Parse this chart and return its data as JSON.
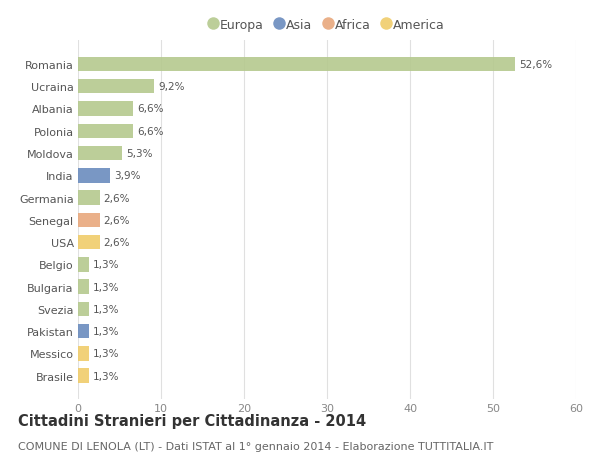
{
  "countries": [
    "Romania",
    "Ucraina",
    "Albania",
    "Polonia",
    "Moldova",
    "India",
    "Germania",
    "Senegal",
    "USA",
    "Belgio",
    "Bulgaria",
    "Svezia",
    "Pakistan",
    "Messico",
    "Brasile"
  ],
  "values": [
    52.6,
    9.2,
    6.6,
    6.6,
    5.3,
    3.9,
    2.6,
    2.6,
    2.6,
    1.3,
    1.3,
    1.3,
    1.3,
    1.3,
    1.3
  ],
  "labels": [
    "52,6%",
    "9,2%",
    "6,6%",
    "6,6%",
    "5,3%",
    "3,9%",
    "2,6%",
    "2,6%",
    "2,6%",
    "1,3%",
    "1,3%",
    "1,3%",
    "1,3%",
    "1,3%",
    "1,3%"
  ],
  "continents": [
    "Europa",
    "Europa",
    "Europa",
    "Europa",
    "Europa",
    "Asia",
    "Europa",
    "Africa",
    "America",
    "Europa",
    "Europa",
    "Europa",
    "Asia",
    "America",
    "America"
  ],
  "continent_colors": {
    "Europa": "#b5c98e",
    "Asia": "#6b8cbe",
    "Africa": "#e8a87c",
    "America": "#f0cc6a"
  },
  "legend_order": [
    "Europa",
    "Asia",
    "Africa",
    "America"
  ],
  "title": "Cittadini Stranieri per Cittadinanza - 2014",
  "subtitle": "COMUNE DI LENOLA (LT) - Dati ISTAT al 1° gennaio 2014 - Elaborazione TUTTITALIA.IT",
  "xlim": [
    0,
    60
  ],
  "xticks": [
    0,
    10,
    20,
    30,
    40,
    50,
    60
  ],
  "bg_color": "#ffffff",
  "grid_color": "#e0e0e0",
  "bar_height": 0.65,
  "title_fontsize": 10.5,
  "subtitle_fontsize": 8,
  "label_fontsize": 7.5,
  "tick_fontsize": 8,
  "legend_fontsize": 9
}
